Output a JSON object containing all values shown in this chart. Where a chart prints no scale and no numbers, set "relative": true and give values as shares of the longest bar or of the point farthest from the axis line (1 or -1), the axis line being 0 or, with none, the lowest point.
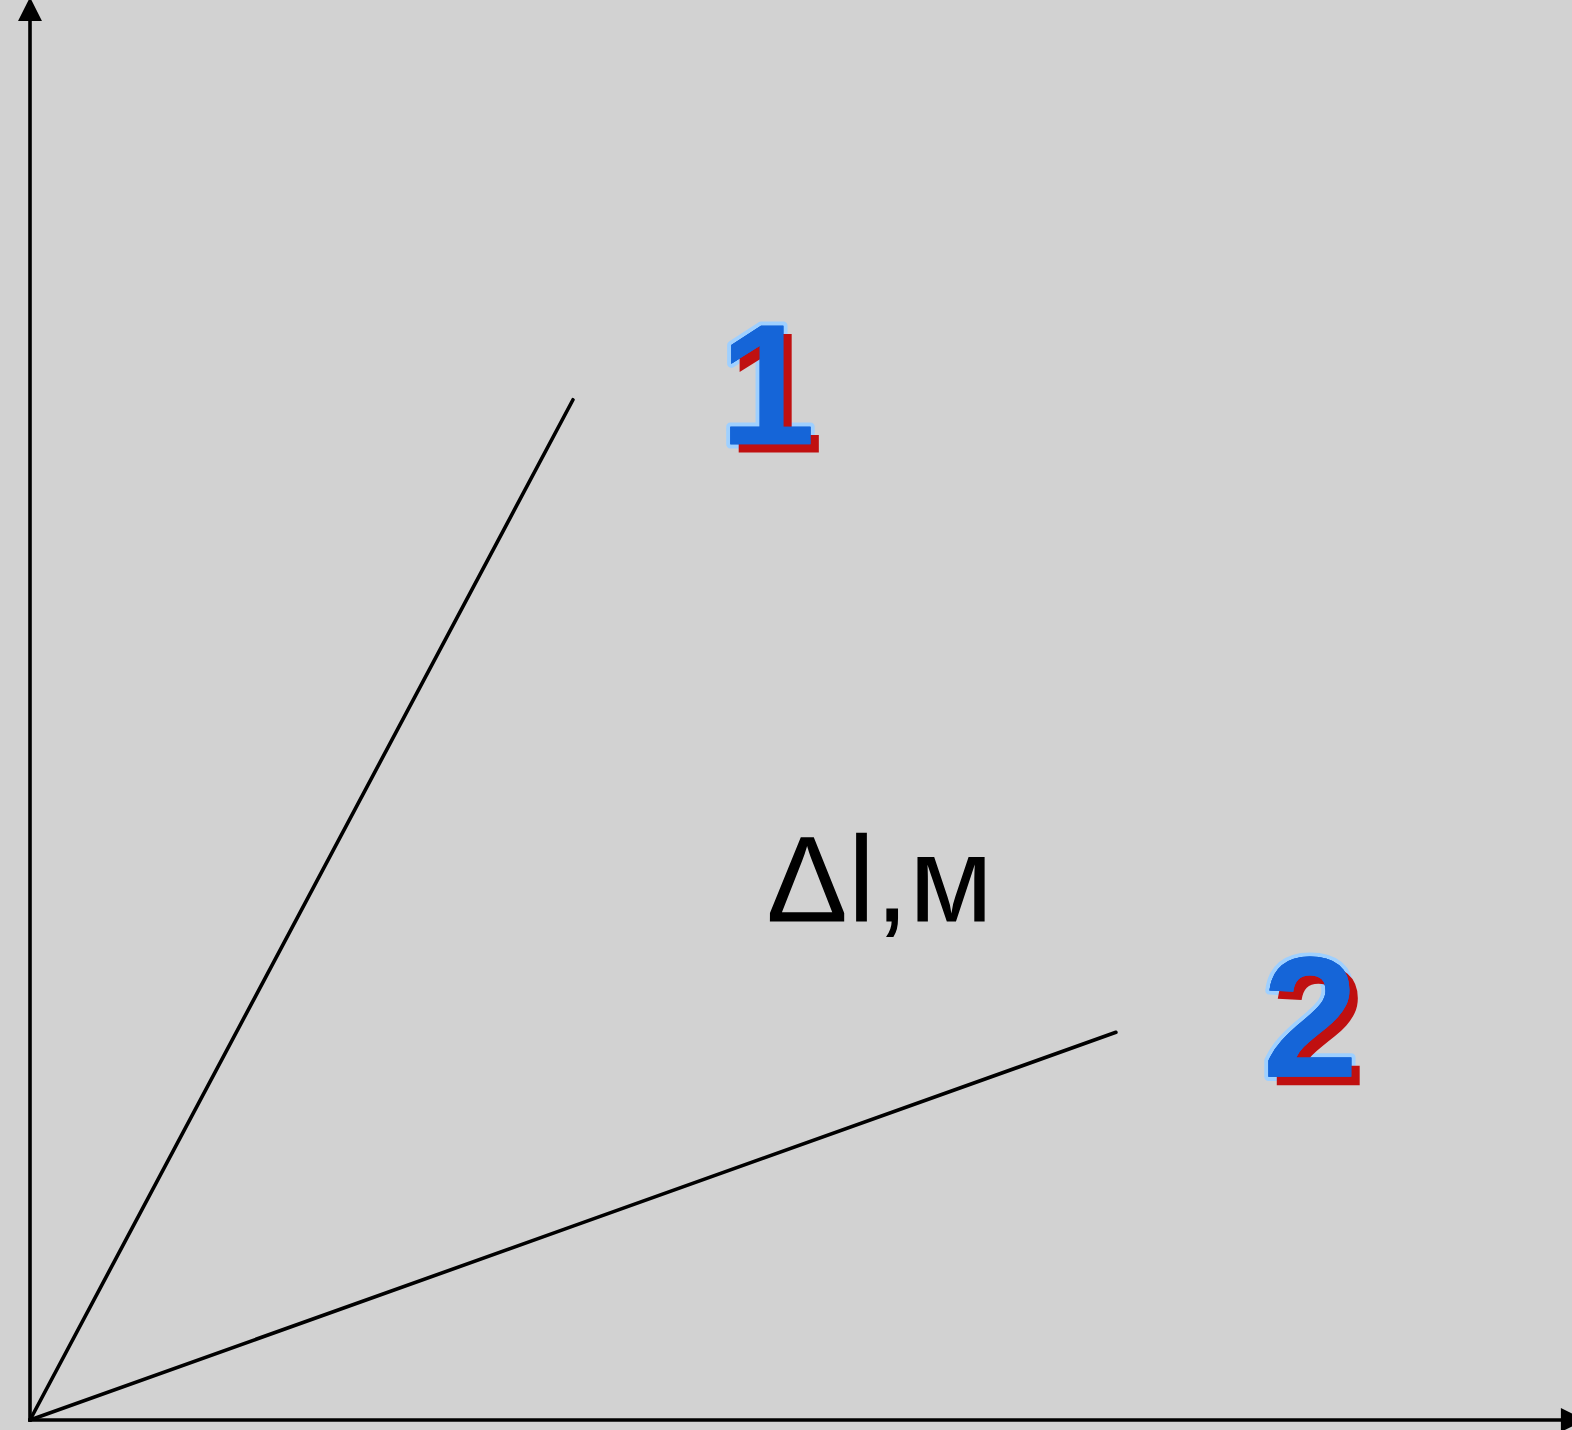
{
  "chart_data": {
    "type": "line",
    "relative": true,
    "annotations": [
      "Δl,м"
    ],
    "categories": [
      null,
      null,
      null
    ],
    "series": [
      {
        "name": "1",
        "color": "#000000",
        "values": [
          0,
          1,
          null
        ]
      },
      {
        "name": "2",
        "color": "#000000",
        "values": [
          0,
          0.19,
          0.38
        ]
      }
    ]
  }
}
